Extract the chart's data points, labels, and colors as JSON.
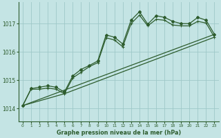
{
  "title": "Graphe pression niveau de la mer (hPa)",
  "bg_color": "#c4e4e4",
  "grid_color": "#9ec8c8",
  "line_color": "#2d5c2d",
  "xlim": [
    -0.5,
    23.5
  ],
  "ylim": [
    1013.55,
    1017.75
  ],
  "yticks": [
    1014,
    1015,
    1016,
    1017
  ],
  "xticks": [
    0,
    1,
    2,
    3,
    4,
    5,
    6,
    7,
    8,
    9,
    10,
    11,
    12,
    13,
    14,
    15,
    16,
    17,
    18,
    19,
    20,
    21,
    22,
    23
  ],
  "line1_x": [
    0,
    1,
    2,
    3,
    4,
    5,
    6,
    7,
    8,
    9,
    10,
    11,
    12,
    13,
    14,
    15,
    16,
    17,
    18,
    19,
    20,
    21,
    22,
    23
  ],
  "line1_y": [
    1014.1,
    1014.7,
    1014.75,
    1014.8,
    1014.75,
    1014.58,
    1015.15,
    1015.38,
    1015.52,
    1015.68,
    1016.6,
    1016.52,
    1016.28,
    1017.12,
    1017.42,
    1016.98,
    1017.28,
    1017.22,
    1017.08,
    1017.0,
    1017.0,
    1017.22,
    1017.12,
    1016.62
  ],
  "line2_x": [
    0,
    1,
    2,
    3,
    4,
    5,
    6,
    7,
    8,
    9,
    10,
    11,
    12,
    13,
    14,
    15,
    16,
    17,
    18,
    19,
    20,
    21,
    22,
    23
  ],
  "line2_y": [
    1014.1,
    1014.68,
    1014.68,
    1014.72,
    1014.68,
    1014.52,
    1015.08,
    1015.28,
    1015.48,
    1015.62,
    1016.5,
    1016.42,
    1016.18,
    1017.0,
    1017.3,
    1016.92,
    1017.15,
    1017.12,
    1016.95,
    1016.92,
    1016.92,
    1017.08,
    1017.02,
    1016.52
  ],
  "line3_x": [
    0,
    23
  ],
  "line3_y": [
    1014.1,
    1016.62
  ],
  "line4_x": [
    0,
    5,
    23
  ],
  "line4_y": [
    1014.1,
    1014.52,
    1016.52
  ]
}
